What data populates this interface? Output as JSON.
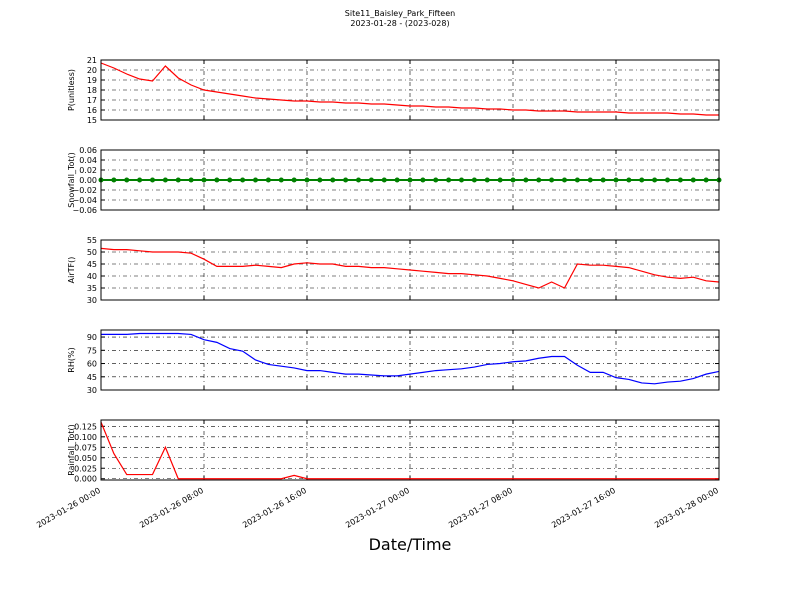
{
  "title": "Site11_Baisley_Park_Fifteen",
  "subtitle": "2023-01-28 - (2023-028)",
  "xlabel": "Date/Time",
  "xlim": [
    "2023-01-26 00:00",
    "2023-01-28 00:00"
  ],
  "xticks": [
    "2023-01-26 00:00",
    "2023-01-26 08:00",
    "2023-01-26 16:00",
    "2023-01-27 00:00",
    "2023-01-27 08:00",
    "2023-01-27 16:00",
    "2023-01-28 00:00"
  ],
  "x": [
    "2023-01-26 00:00",
    "2023-01-26 01:00",
    "2023-01-26 02:00",
    "2023-01-26 03:00",
    "2023-01-26 04:00",
    "2023-01-26 05:00",
    "2023-01-26 06:00",
    "2023-01-26 07:00",
    "2023-01-26 08:00",
    "2023-01-26 09:00",
    "2023-01-26 10:00",
    "2023-01-26 11:00",
    "2023-01-26 12:00",
    "2023-01-26 13:00",
    "2023-01-26 14:00",
    "2023-01-26 15:00",
    "2023-01-26 16:00",
    "2023-01-26 17:00",
    "2023-01-26 18:00",
    "2023-01-26 19:00",
    "2023-01-26 20:00",
    "2023-01-26 21:00",
    "2023-01-26 22:00",
    "2023-01-26 23:00",
    "2023-01-27 00:00",
    "2023-01-27 01:00",
    "2023-01-27 02:00",
    "2023-01-27 03:00",
    "2023-01-27 04:00",
    "2023-01-27 05:00",
    "2023-01-27 06:00",
    "2023-01-27 07:00",
    "2023-01-27 08:00",
    "2023-01-27 09:00",
    "2023-01-27 10:00",
    "2023-01-27 11:00",
    "2023-01-27 12:00",
    "2023-01-27 13:00",
    "2023-01-27 14:00",
    "2023-01-27 15:00",
    "2023-01-27 16:00",
    "2023-01-27 17:00",
    "2023-01-27 18:00",
    "2023-01-27 19:00",
    "2023-01-27 20:00",
    "2023-01-27 21:00",
    "2023-01-27 22:00",
    "2023-01-27 23:00",
    "2023-01-28 00:00"
  ],
  "chart_data": [
    {
      "type": "line",
      "ylabel": "P(unitless)",
      "color": "#ff0000",
      "grid": true,
      "ylim": [
        15,
        21
      ],
      "yticks": [
        15,
        16,
        17,
        18,
        19,
        20,
        21
      ],
      "values": [
        20.7,
        20.2,
        19.6,
        19.1,
        18.9,
        20.4,
        19.2,
        18.5,
        18.0,
        17.8,
        17.6,
        17.4,
        17.2,
        17.1,
        17.0,
        16.9,
        16.9,
        16.8,
        16.8,
        16.7,
        16.7,
        16.6,
        16.6,
        16.5,
        16.4,
        16.4,
        16.3,
        16.3,
        16.2,
        16.2,
        16.1,
        16.1,
        16.0,
        16.0,
        15.9,
        15.9,
        15.9,
        15.8,
        15.8,
        15.8,
        15.8,
        15.7,
        15.7,
        15.7,
        15.7,
        15.6,
        15.6,
        15.5,
        15.5
      ]
    },
    {
      "type": "scatter",
      "ylabel": "Snowfall_Tot()",
      "color": "#008000",
      "grid": true,
      "ylim": [
        -0.06,
        0.06
      ],
      "yticks": [
        {
          "value": -0.06,
          "label": "−0.06"
        },
        {
          "value": -0.04,
          "label": "−0.04"
        },
        {
          "value": -0.02,
          "label": "−0.02"
        },
        {
          "value": 0,
          "label": "0.00"
        },
        {
          "value": 0.02,
          "label": "0.02"
        },
        {
          "value": 0.04,
          "label": "0.04"
        },
        {
          "value": 0.06,
          "label": "0.06"
        }
      ],
      "values": [
        0,
        0,
        0,
        0,
        0,
        0,
        0,
        0,
        0,
        0,
        0,
        0,
        0,
        0,
        0,
        0,
        0,
        0,
        0,
        0,
        0,
        0,
        0,
        0,
        0,
        0,
        0,
        0,
        0,
        0,
        0,
        0,
        0,
        0,
        0,
        0,
        0,
        0,
        0,
        0,
        0,
        0,
        0,
        0,
        0,
        0,
        0,
        0,
        0
      ]
    },
    {
      "type": "line",
      "ylabel": "AirTF()",
      "color": "#ff0000",
      "grid": true,
      "ylim": [
        30,
        55
      ],
      "yticks": [
        30,
        35,
        40,
        45,
        50,
        55
      ],
      "values": [
        51.5,
        51,
        51,
        50.5,
        50,
        50,
        50,
        49.5,
        47,
        44,
        44,
        44,
        44.5,
        44,
        43.5,
        45,
        45.5,
        45,
        45,
        44,
        44,
        43.5,
        43.5,
        43,
        42.5,
        42,
        41.5,
        41,
        41,
        40.5,
        40,
        39,
        38,
        36.5,
        35,
        37.5,
        35,
        45,
        44.5,
        44.5,
        44,
        43.5,
        42,
        40.5,
        39.5,
        39,
        39.5,
        38,
        37.5
      ]
    },
    {
      "type": "line",
      "ylabel": "RH(%)",
      "color": "#0000ff",
      "grid": true,
      "ylim": [
        30,
        98
      ],
      "yticks": [
        30,
        45,
        60,
        75,
        90
      ],
      "values": [
        93,
        93,
        93,
        94,
        94,
        94,
        94,
        93,
        87,
        84,
        77,
        74,
        64,
        59,
        57,
        55,
        52,
        52,
        50,
        48,
        48,
        47,
        46,
        46,
        48,
        50,
        52,
        53,
        54,
        56,
        59,
        60,
        62,
        63,
        66,
        68,
        68,
        58,
        50,
        50,
        44,
        42,
        38,
        37,
        39,
        40,
        43,
        48,
        51
      ]
    },
    {
      "type": "line",
      "ylabel": "Rainfall_Tot()",
      "color": "#ff0000",
      "grid": true,
      "ylim": [
        -0.003,
        0.14
      ],
      "yticks": [
        {
          "value": 0,
          "label": "0.000"
        },
        {
          "value": 0.025,
          "label": "0.025"
        },
        {
          "value": 0.05,
          "label": "0.050"
        },
        {
          "value": 0.075,
          "label": "0.075"
        },
        {
          "value": 0.1,
          "label": "0.100"
        },
        {
          "value": 0.125,
          "label": "0.125"
        }
      ],
      "values": [
        0.135,
        0.06,
        0.01,
        0.01,
        0.01,
        0.075,
        0,
        0,
        0,
        0,
        0,
        0,
        0,
        0,
        0,
        0.008,
        0,
        0,
        0,
        0,
        0,
        0,
        0,
        0,
        0,
        0,
        0,
        0,
        0,
        0,
        0,
        0,
        0,
        0,
        0,
        0,
        0,
        0,
        0,
        0,
        0,
        0,
        0,
        0,
        0,
        0,
        0,
        0,
        0
      ]
    }
  ]
}
